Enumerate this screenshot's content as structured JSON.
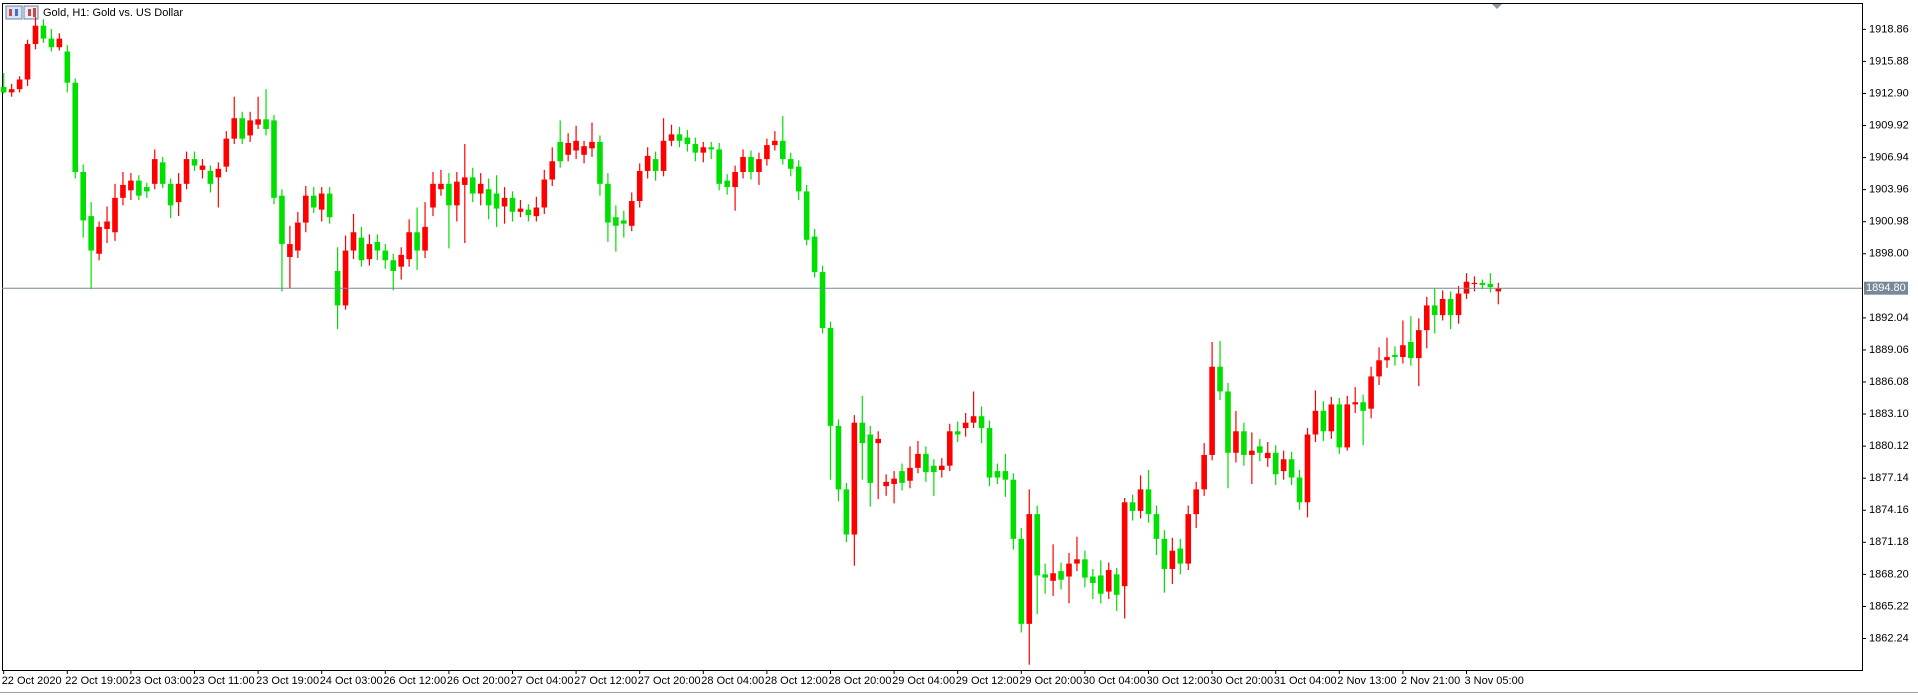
{
  "chart_data": {
    "type": "candlestick",
    "title": "Gold, H1:  Gold vs. US Dollar",
    "up_color": "#ff0000",
    "down_color": "#00e000",
    "price_line_color": "#778899",
    "current_price": {
      "value": 1894.8,
      "label": "1894.80"
    },
    "ylim": [
      1859.31,
      1921.31
    ],
    "yticks": [
      1918.86,
      1915.88,
      {
        "value": 1912.9,
        "label": "1912.90"
      },
      1909.92,
      1906.94,
      1903.96,
      1900.98,
      {
        "value": 1898,
        "label": "1898.00"
      },
      1892.04,
      1889.06,
      1886.08,
      {
        "value": 1883.1,
        "label": "1883.10"
      },
      1880.12,
      1877.14,
      1874.16,
      1871.18,
      {
        "value": 1868.2,
        "label": "1868.20"
      },
      1865.22,
      1862.24
    ],
    "categories": [
      "22 Oct 2020",
      null,
      null,
      null,
      null,
      null,
      null,
      null,
      "22 Oct 19:00",
      null,
      null,
      null,
      null,
      null,
      null,
      null,
      "23 Oct 03:00",
      null,
      null,
      null,
      null,
      null,
      null,
      null,
      "23 Oct 11:00",
      null,
      null,
      null,
      null,
      null,
      null,
      null,
      "23 Oct 19:00",
      null,
      null,
      null,
      null,
      null,
      null,
      null,
      "24 Oct 03:00",
      null,
      null,
      null,
      null,
      null,
      null,
      null,
      "26 Oct 12:00",
      null,
      null,
      null,
      null,
      null,
      null,
      null,
      "26 Oct 20:00",
      null,
      null,
      null,
      null,
      null,
      null,
      null,
      "27 Oct 04:00",
      null,
      null,
      null,
      null,
      null,
      null,
      null,
      "27 Oct 12:00",
      null,
      null,
      null,
      null,
      null,
      null,
      null,
      "27 Oct 20:00",
      null,
      null,
      null,
      null,
      null,
      null,
      null,
      "28 Oct 04:00",
      null,
      null,
      null,
      null,
      null,
      null,
      null,
      "28 Oct 12:00",
      null,
      null,
      null,
      null,
      null,
      null,
      null,
      "28 Oct 20:00",
      null,
      null,
      null,
      null,
      null,
      null,
      null,
      "29 Oct 04:00",
      null,
      null,
      null,
      null,
      null,
      null,
      null,
      "29 Oct 12:00",
      null,
      null,
      null,
      null,
      null,
      null,
      null,
      "29 Oct 20:00",
      null,
      null,
      null,
      null,
      null,
      null,
      null,
      "30 Oct 04:00",
      null,
      null,
      null,
      null,
      null,
      null,
      null,
      "30 Oct 12:00",
      null,
      null,
      null,
      null,
      null,
      null,
      null,
      "30 Oct 20:00",
      null,
      null,
      null,
      null,
      null,
      null,
      null,
      "31 Oct 04:00",
      null,
      null,
      null,
      null,
      null,
      null,
      null,
      "2 Nov 13:00",
      null,
      null,
      null,
      null,
      null,
      null,
      null,
      "2 Nov 21:00",
      null,
      null,
      null,
      null,
      null,
      null,
      null,
      "3 Nov 05:00",
      null,
      null,
      null,
      null
    ],
    "open": [
      1913.5,
      1913.0,
      1913.3,
      1914.2,
      1917.5,
      1919.2,
      1918.0,
      1917.2,
      1916.8,
      1913.9,
      1905.6,
      1901.5,
      1898.0,
      1900.3,
      1900.0,
      1903.2,
      1903.9,
      1904.8,
      1904.2,
      1904.5,
      1906.5,
      1904.5,
      1902.8,
      1904.5,
      1906.8,
      1905.8,
      1905.7,
      1905.1,
      1906.1,
      1908.7,
      1910.6,
      1909.0,
      1910.0,
      1910.5,
      1910.4,
      1903.4,
      1897.7,
      1898.3,
      1900.9,
      1903.4,
      1902.1,
      1903.6,
      1896.4,
      1893.2,
      1898.3,
      1899.5,
      1897.5,
      1899.1,
      1898.3,
      1897.4,
      1896.8,
      1897.5,
      1900.0,
      1898.3,
      1902.3,
      1904.0,
      1904.5,
      1902.5,
      1904.4,
      1905.1,
      1903.6,
      1904.0,
      1903.6,
      1902.4,
      1903.2,
      1901.9,
      1902.1,
      1901.5,
      1902.3,
      1904.9,
      1908.4,
      1907.2,
      1907.6,
      1907.2,
      1907.8,
      1908.4,
      1904.5,
      1901.4,
      1901.1,
      1900.6,
      1902.9,
      1905.7,
      1906.8,
      1905.7,
      1908.5,
      1909.1,
      1908.8,
      1908.2,
      1907.4,
      1907.9,
      1907.7,
      1904.8,
      1904.2,
      1905.6,
      1907.0,
      1905.6,
      1906.8,
      1908.1,
      1908.5,
      1906.8,
      1906.1,
      1903.8,
      1899.6,
      1896.3,
      1891.1,
      1882.0,
      1876.1,
      1871.9,
      1882.3,
      1881.2,
      1880.4,
      1876.4,
      1876.6,
      1877.8,
      1876.9,
      1878.1,
      1879.4,
      1878.3,
      1877.9,
      1878.3,
      1881.5,
      1881.8,
      1882.3,
      1882.9,
      1881.8,
      1877.8,
      1877.8,
      1877.0,
      1871.5,
      1863.6,
      1873.8,
      1868.2,
      1867.6,
      1868.5,
      1868.0,
      1869.2,
      1869.6,
      1868.0,
      1868.1,
      1866.6,
      1868.2,
      1867.1,
      1874.9,
      1874.1,
      1876.1,
      1873.8,
      1871.5,
      1868.7,
      1870.6,
      1869.2,
      1873.8,
      1876.1,
      1879.3,
      1887.5,
      1885.2,
      1879.5,
      1881.5,
      1879.3,
      1880.1,
      1879.0,
      1879.5,
      1877.8,
      1878.9,
      1877.2,
      1874.9,
      1881.2,
      1883.4,
      1881.5,
      1884.0,
      1880.0,
      1884.0,
      1884.2,
      1883.6,
      1886.6,
      1888.1,
      1888.6,
      1888.4,
      1889.8,
      1888.3,
      1890.9,
      1893.2,
      1892.3,
      1893.8,
      1892.3,
      1894.3,
      1895.2,
      1895.3,
      1895.2,
      1894.5
    ],
    "high": [
      1914.8,
      1913.8,
      1914.5,
      1917.9,
      1920.0,
      1919.8,
      1918.9,
      1918.5,
      1917.4,
      1914.3,
      1906.3,
      1902.8,
      1901.0,
      1902.4,
      1904.5,
      1905.6,
      1905.5,
      1905.3,
      1904.6,
      1907.7,
      1907.0,
      1905.0,
      1905.5,
      1907.5,
      1907.5,
      1906.8,
      1906.2,
      1906.5,
      1909.4,
      1912.6,
      1911.2,
      1911.2,
      1912.6,
      1913.3,
      1910.9,
      1904.0,
      1900.6,
      1901.9,
      1904.3,
      1904.2,
      1904.2,
      1904.2,
      1898.6,
      1899.7,
      1901.7,
      1900.5,
      1899.8,
      1899.8,
      1898.9,
      1898.0,
      1898.6,
      1901.2,
      1902.3,
      1902.8,
      1905.6,
      1905.8,
      1905.5,
      1905.6,
      1908.2,
      1906.0,
      1905.5,
      1905.0,
      1905.3,
      1904.2,
      1903.8,
      1903.0,
      1902.6,
      1903.3,
      1905.8,
      1907.9,
      1910.4,
      1909.2,
      1909.9,
      1908.5,
      1910.2,
      1909.0,
      1905.5,
      1902.5,
      1902.0,
      1903.7,
      1906.4,
      1907.9,
      1907.5,
      1910.6,
      1910.0,
      1909.8,
      1909.5,
      1908.8,
      1908.4,
      1908.4,
      1908.3,
      1905.4,
      1906.2,
      1907.7,
      1907.6,
      1907.4,
      1908.7,
      1909.4,
      1910.8,
      1907.4,
      1906.7,
      1904.4,
      1900.3,
      1896.9,
      1891.7,
      1882.6,
      1876.7,
      1883.0,
      1884.8,
      1882.0,
      1881.5,
      1877.5,
      1877.8,
      1878.5,
      1880.1,
      1880.6,
      1880.1,
      1878.9,
      1879.0,
      1882.2,
      1882.4,
      1883.2,
      1885.2,
      1883.8,
      1882.5,
      1878.5,
      1879.4,
      1877.6,
      1872.5,
      1876.1,
      1874.6,
      1869.2,
      1871.0,
      1869.3,
      1870.2,
      1871.7,
      1870.4,
      1868.7,
      1869.5,
      1869.3,
      1868.8,
      1875.3,
      1875.6,
      1877.4,
      1877.9,
      1874.6,
      1872.3,
      1871.6,
      1871.5,
      1874.6,
      1876.8,
      1880.4,
      1889.8,
      1889.9,
      1886.0,
      1883.4,
      1882.3,
      1881.4,
      1880.8,
      1880.5,
      1880.2,
      1879.7,
      1879.6,
      1877.9,
      1881.8,
      1885.3,
      1884.3,
      1884.7,
      1884.6,
      1884.8,
      1885.6,
      1884.9,
      1887.5,
      1889.3,
      1890.2,
      1889.4,
      1891.8,
      1892.2,
      1892.0,
      1894.0,
      1894.8,
      1894.6,
      1894.5,
      1895.0,
      1896.2,
      1895.9,
      1895.6,
      1896.2,
      1895.3
    ],
    "low": [
      1912.9,
      1912.6,
      1913.0,
      1913.6,
      1917.0,
      1917.6,
      1916.8,
      1916.9,
      1913.0,
      1905.0,
      1899.5,
      1894.7,
      1897.4,
      1899.0,
      1899.2,
      1902.5,
      1903.0,
      1903.0,
      1903.2,
      1904.0,
      1904.1,
      1901.3,
      1901.5,
      1904.0,
      1905.7,
      1905.0,
      1903.7,
      1902.3,
      1905.6,
      1908.2,
      1908.2,
      1908.4,
      1909.6,
      1909.0,
      1902.6,
      1894.5,
      1894.8,
      1897.6,
      1900.0,
      1901.8,
      1901.0,
      1900.8,
      1891.0,
      1892.8,
      1897.5,
      1896.8,
      1896.9,
      1897.4,
      1896.6,
      1894.6,
      1895.6,
      1896.8,
      1896.5,
      1897.6,
      1901.5,
      1903.4,
      1898.5,
      1901.0,
      1899.0,
      1902.8,
      1902.5,
      1901.2,
      1900.5,
      1900.8,
      1901.0,
      1901.4,
      1901.0,
      1901.0,
      1901.7,
      1904.3,
      1906.0,
      1906.6,
      1906.8,
      1906.4,
      1907.0,
      1903.4,
      1899.1,
      1898.2,
      1899.5,
      1900.1,
      1902.3,
      1905.0,
      1904.8,
      1905.2,
      1908.0,
      1907.9,
      1907.5,
      1906.6,
      1906.5,
      1906.8,
      1903.9,
      1903.5,
      1902.0,
      1905.0,
      1904.9,
      1904.4,
      1906.2,
      1907.6,
      1906.3,
      1905.2,
      1903.0,
      1898.8,
      1895.8,
      1890.6,
      1877.0,
      1875.0,
      1871.2,
      1869.0,
      1877.0,
      1874.5,
      1875.2,
      1875.5,
      1874.8,
      1876.0,
      1876.2,
      1877.6,
      1876.8,
      1875.5,
      1877.2,
      1877.8,
      1880.5,
      1881.0,
      1881.8,
      1880.4,
      1876.4,
      1876.6,
      1875.4,
      1870.5,
      1862.8,
      1859.8,
      1864.5,
      1866.4,
      1866.2,
      1866.8,
      1865.5,
      1868.5,
      1867.0,
      1865.9,
      1865.5,
      1865.9,
      1864.8,
      1864.1,
      1873.2,
      1873.4,
      1873.0,
      1870.0,
      1866.5,
      1867.3,
      1868.2,
      1868.6,
      1872.5,
      1875.5,
      1878.8,
      1884.4,
      1876.2,
      1878.6,
      1878.3,
      1876.6,
      1878.7,
      1878.2,
      1876.5,
      1877.0,
      1876.5,
      1874.2,
      1873.5,
      1880.5,
      1880.6,
      1880.8,
      1879.4,
      1879.7,
      1883.2,
      1880.2,
      1882.7,
      1885.8,
      1887.4,
      1887.6,
      1887.8,
      1887.6,
      1885.7,
      1889.2,
      1890.6,
      1891.8,
      1891.0,
      1891.5,
      1893.8,
      1894.5,
      1894.7,
      1894.4,
      1893.3
    ],
    "close": [
      1913.0,
      1913.3,
      1914.2,
      1917.5,
      1919.2,
      1918.0,
      1917.2,
      1918.0,
      1913.9,
      1905.6,
      1901.1,
      1898.3,
      1900.5,
      1901.0,
      1903.2,
      1904.4,
      1904.8,
      1903.4,
      1903.8,
      1906.8,
      1904.5,
      1902.5,
      1904.5,
      1906.8,
      1906.2,
      1906.2,
      1904.5,
      1905.9,
      1908.7,
      1910.6,
      1908.7,
      1910.4,
      1910.5,
      1909.6,
      1903.2,
      1898.9,
      1898.9,
      1900.9,
      1903.4,
      1902.3,
      1903.6,
      1901.4,
      1893.2,
      1898.3,
      1900.0,
      1897.4,
      1898.9,
      1898.3,
      1897.4,
      1896.4,
      1897.9,
      1900.0,
      1898.3,
      1900.5,
      1904.5,
      1904.5,
      1902.5,
      1904.7,
      1905.1,
      1903.6,
      1904.5,
      1902.5,
      1902.2,
      1903.2,
      1901.9,
      1902.2,
      1901.6,
      1902.3,
      1904.9,
      1906.6,
      1906.6,
      1908.3,
      1908.5,
      1908.0,
      1908.4,
      1904.5,
      1900.9,
      1900.6,
      1900.8,
      1902.9,
      1905.7,
      1907.1,
      1905.7,
      1908.5,
      1909.1,
      1908.5,
      1908.2,
      1907.4,
      1907.9,
      1907.7,
      1904.5,
      1904.2,
      1905.6,
      1907.0,
      1905.6,
      1906.8,
      1908.1,
      1908.5,
      1906.8,
      1905.9,
      1903.8,
      1899.3,
      1896.3,
      1891.1,
      1882.0,
      1876.1,
      1871.9,
      1882.3,
      1880.4,
      1876.7,
      1880.8,
      1876.8,
      1877.1,
      1876.7,
      1878.1,
      1879.4,
      1877.7,
      1877.7,
      1878.3,
      1881.5,
      1881.2,
      1882.3,
      1882.9,
      1881.8,
      1877.2,
      1877.2,
      1877.0,
      1871.5,
      1863.6,
      1873.8,
      1868.1,
      1867.9,
      1868.3,
      1867.7,
      1869.2,
      1869.6,
      1867.9,
      1867.4,
      1866.4,
      1868.6,
      1866.3,
      1874.9,
      1874.1,
      1876.1,
      1873.8,
      1871.5,
      1868.7,
      1870.4,
      1869.2,
      1873.8,
      1876.1,
      1879.3,
      1887.5,
      1885.2,
      1879.5,
      1881.5,
      1879.3,
      1879.7,
      1879.5,
      1879.5,
      1877.5,
      1878.9,
      1877.2,
      1874.9,
      1881.2,
      1883.4,
      1881.5,
      1884.0,
      1880.0,
      1884.0,
      1884.2,
      1883.4,
      1886.6,
      1888.1,
      1888.4,
      1888.4,
      1889.5,
      1888.3,
      1890.9,
      1893.2,
      1892.3,
      1893.8,
      1892.3,
      1894.3,
      1895.4,
      1895.3,
      1895.1,
      1894.9,
      1894.8
    ]
  }
}
